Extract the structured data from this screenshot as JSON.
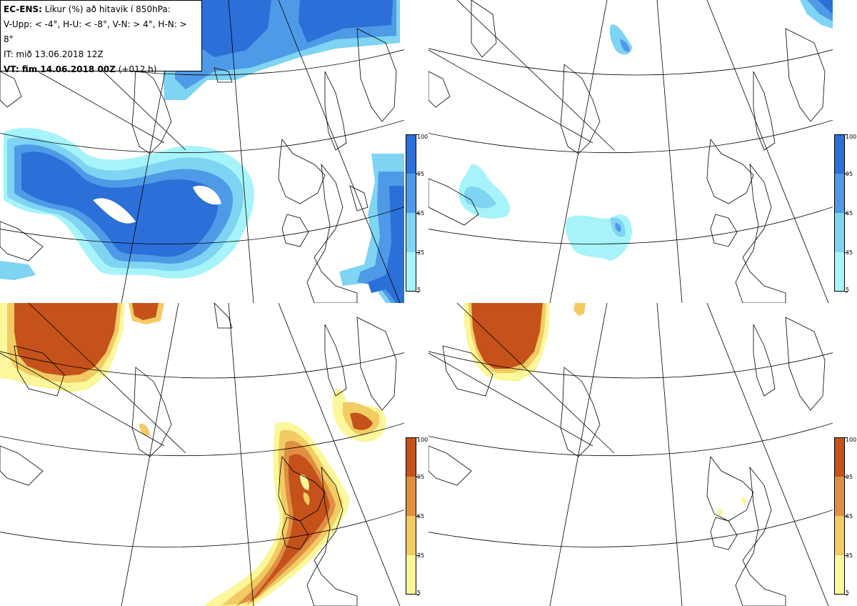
{
  "infobox": {
    "line1_bold": "EC-ENS:",
    "line1_rest": "Líkur (%) að hitavik í 850hPa:",
    "line2": "V-Upp: < -4°, H-U: < -8°, V-N: > 4°, H-N: > 8°",
    "line3": "IT: mið 13.06.2018 12Z",
    "line4_bold": "VT: fim 14.06.2018 00Z",
    "line4_rest": "(+012 h)"
  },
  "colorbars": {
    "cold": {
      "labels": [
        "100",
        "95",
        "65",
        "35",
        "5"
      ],
      "colors": [
        "#2c6fd8",
        "#4f9ae6",
        "#7ed4f2",
        "#a6f4fa"
      ]
    },
    "warm": {
      "labels": [
        "100",
        "95",
        "65",
        "35",
        "5"
      ],
      "colors": [
        "#c4521a",
        "#df8f42",
        "#f2cb63",
        "#fbf79a"
      ]
    }
  },
  "panels": [
    {
      "id": "top-left",
      "variable": "V-Upp",
      "palette": "cold"
    },
    {
      "id": "top-right",
      "variable": "H-U",
      "palette": "cold"
    },
    {
      "id": "bottom-left",
      "variable": "V-N",
      "palette": "warm"
    },
    {
      "id": "bottom-right",
      "variable": "H-N",
      "palette": "warm"
    }
  ]
}
